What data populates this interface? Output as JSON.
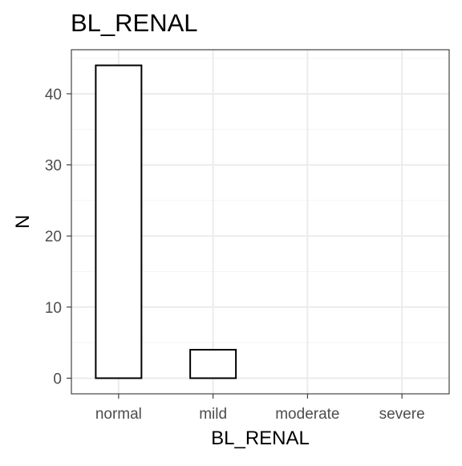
{
  "chart_data": {
    "type": "bar",
    "title": "BL_RENAL",
    "xlabel": "BL_RENAL",
    "ylabel": "N",
    "categories": [
      "normal",
      "mild",
      "moderate",
      "severe"
    ],
    "values": [
      44,
      4,
      0,
      0
    ],
    "ylim": [
      -2.2,
      46.2
    ],
    "yticks": [
      0,
      10,
      20,
      30,
      40
    ],
    "ytick_labels": [
      "0",
      "10",
      "20",
      "30",
      "40"
    ],
    "grid": true,
    "legend": "none",
    "colors": {
      "bar_fill": "#ffffff",
      "bar_stroke": "#000000",
      "grid_major": "#ebebeb",
      "grid_minor": "#f5f5f5",
      "panel_border": "#333333",
      "tick_text": "#4d4d4d"
    }
  }
}
